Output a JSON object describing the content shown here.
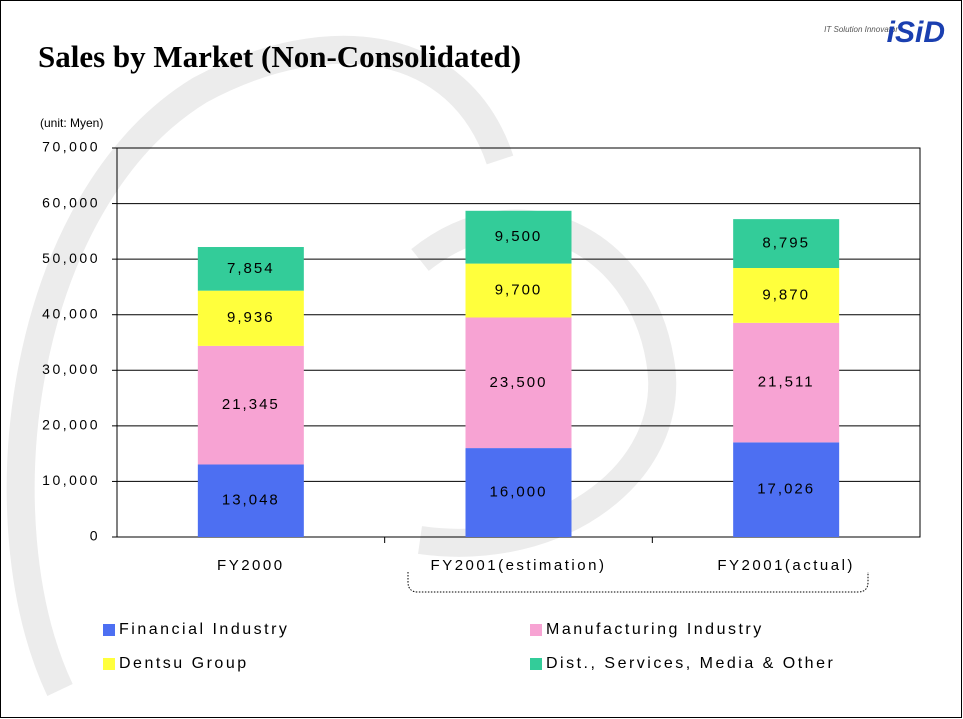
{
  "logo": {
    "tagline": "IT Solution Innovator",
    "name": "iSiD"
  },
  "chart_data": {
    "type": "stacked_bar",
    "title": "Sales by Market (Non-Consolidated)",
    "unit_label": "(unit: Myen)",
    "categories": [
      "FY2000",
      "FY2001(estimation)",
      "FY2001(actual)"
    ],
    "series": [
      {
        "name": "Financial Industry",
        "color": "#4d6ff2",
        "values": [
          13048,
          16000,
          17026
        ],
        "value_labels": [
          "13,048",
          "16,000",
          "17,026"
        ]
      },
      {
        "name": "Manufacturing Industry",
        "color": "#f7a3d3",
        "values": [
          21345,
          23500,
          21511
        ],
        "value_labels": [
          "21,345",
          "23,500",
          "21,511"
        ]
      },
      {
        "name": "Dentsu Group",
        "color": "#ffff3c",
        "values": [
          9936,
          9700,
          9870
        ],
        "value_labels": [
          "9,936",
          "9,700",
          "9,870"
        ]
      },
      {
        "name": "Dist., Services, Media & Other",
        "color": "#33cc99",
        "values": [
          7854,
          9500,
          8795
        ],
        "value_labels": [
          "7,854",
          "9,500",
          "8,795"
        ]
      }
    ],
    "ylim": [
      0,
      70000
    ],
    "yticks": [
      0,
      {
        "value": 10000,
        "label": "10,000"
      },
      {
        "value": 20000,
        "label": "20,000"
      },
      {
        "value": 30000,
        "label": "30,000"
      },
      {
        "value": 40000,
        "label": "40,000"
      },
      {
        "value": 50000,
        "label": "50,000"
      },
      {
        "value": 60000,
        "label": "60,000"
      },
      {
        "value": 70000,
        "label": "70,000"
      }
    ],
    "grid": true
  }
}
